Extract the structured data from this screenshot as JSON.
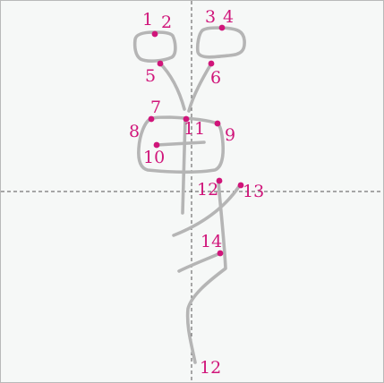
{
  "colors": {
    "background": "#f6f8f7",
    "border": "#b9b9b9",
    "stroke": "#b5b5b5",
    "guide": "#555555",
    "point": "#d0157a",
    "label": "#d0157a"
  },
  "labels": [
    "1",
    "2",
    "3",
    "4",
    "5",
    "6",
    "7",
    "8",
    "9",
    "10",
    "11",
    "12",
    "13",
    "14",
    "12"
  ]
}
